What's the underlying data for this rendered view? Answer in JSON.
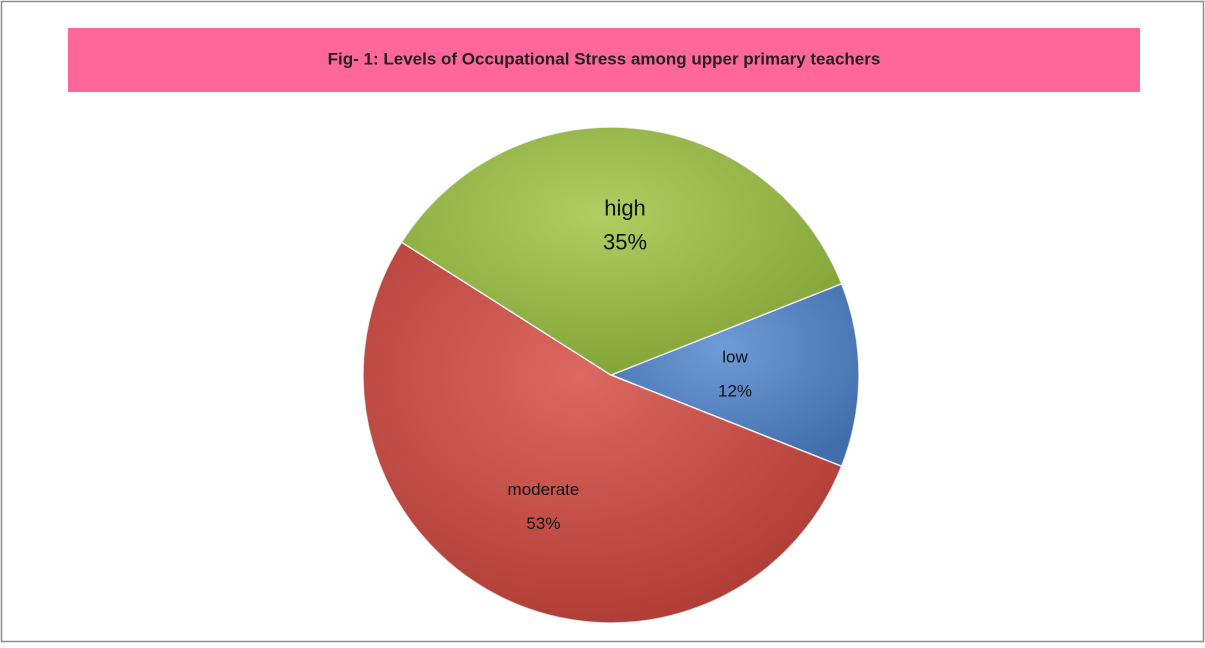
{
  "chart_data": {
    "type": "pie",
    "title": "Fig- 1:  Levels of Occupational Stress among upper primary teachers",
    "categories": [
      "low",
      "moderate",
      "high"
    ],
    "values": [
      12,
      53,
      35
    ],
    "value_labels": [
      "12%",
      "53%",
      "35%"
    ],
    "colors": [
      "#4f86d0",
      "#d4473f",
      "#9dc43f"
    ]
  }
}
